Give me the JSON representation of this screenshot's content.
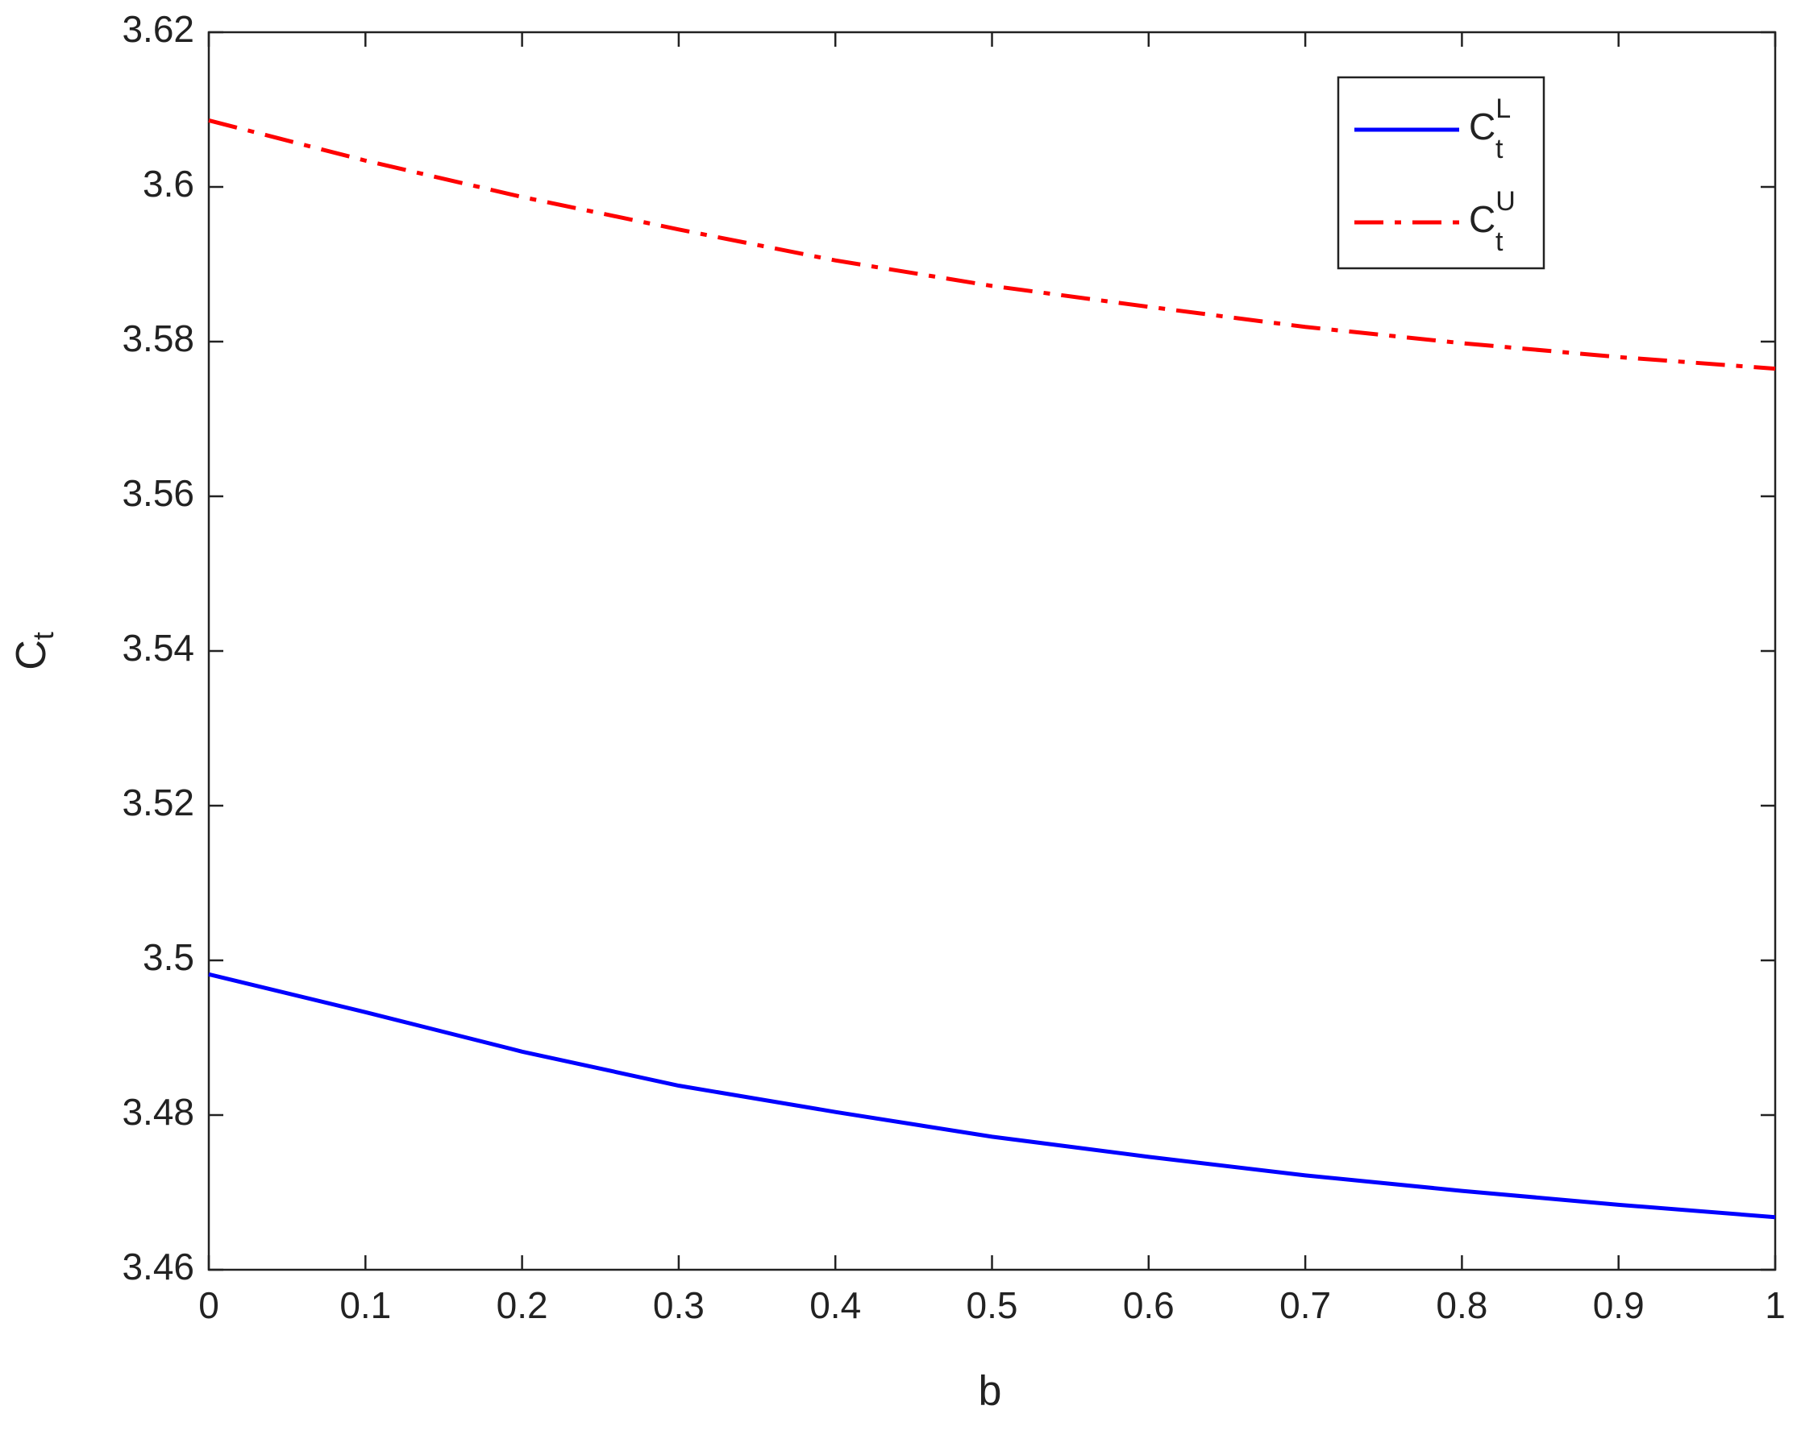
{
  "chart_data": {
    "type": "line",
    "xlabel": "b",
    "ylabel": "C",
    "ylabel_subscript": "t",
    "x": [
      0,
      0.1,
      0.2,
      0.3,
      0.4,
      0.5,
      0.6,
      0.7,
      0.8,
      0.9,
      1
    ],
    "series": [
      {
        "name": "C",
        "subscript": "t",
        "superscript": "L",
        "color": "#0000ff",
        "dash": "solid",
        "values": [
          3.4982,
          3.4933,
          3.4882,
          3.4838,
          3.4804,
          3.4772,
          3.4746,
          3.4722,
          3.4702,
          3.4684,
          3.4668
        ]
      },
      {
        "name": "C",
        "subscript": "t",
        "superscript": "U",
        "color": "#ff0000",
        "dash": "dashdot",
        "values": [
          3.6086,
          3.6034,
          3.5987,
          3.5945,
          3.5905,
          3.5872,
          3.5845,
          3.5819,
          3.5798,
          3.578,
          3.5765
        ]
      }
    ],
    "xlim": [
      0,
      1
    ],
    "xticks": [
      0,
      0.1,
      0.2,
      0.3,
      0.4,
      0.5,
      0.6,
      0.7,
      0.8,
      0.9,
      1
    ],
    "ylim": [
      3.46,
      3.62
    ],
    "yticks": [
      3.46,
      3.48,
      3.5,
      3.52,
      3.54,
      3.56,
      3.58,
      3.6,
      3.62
    ],
    "grid": false,
    "legend": "upper right"
  }
}
